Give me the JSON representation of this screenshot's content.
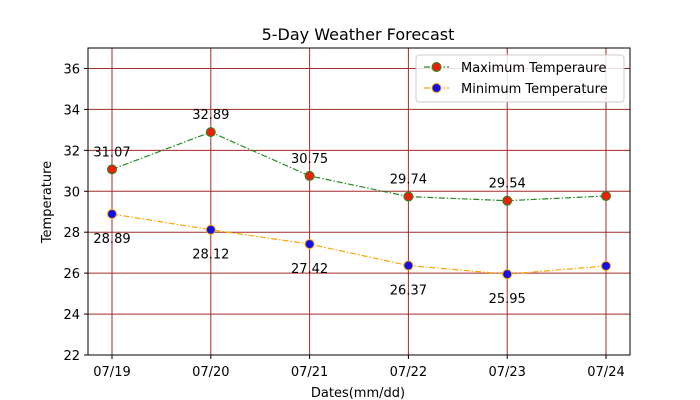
{
  "chart_data": {
    "type": "line",
    "title": "5-Day Weather Forecast",
    "xlabel": "Dates(mm/dd)",
    "ylabel": "Temperature",
    "categories": [
      "07/19",
      "07/20",
      "07/21",
      "07/22",
      "07/23",
      "07/24"
    ],
    "ylim": [
      22,
      37
    ],
    "yticks": [
      22,
      24,
      26,
      28,
      30,
      32,
      34,
      36
    ],
    "grid": true,
    "grid_color": "#a52a2a",
    "legend_position": "top-right",
    "series": [
      {
        "name": "Maximum Temperaure",
        "values": [
          31.07,
          32.89,
          30.75,
          29.74,
          29.54,
          29.77
        ],
        "labels": [
          "31.07",
          "32.89",
          "30.75",
          "29.74",
          "29.54",
          ""
        ],
        "label_position": "above",
        "line_color": "#228b22",
        "line_style": "dashdot",
        "marker_fill": "#e8200c",
        "marker_edge": "#228b22"
      },
      {
        "name": "Minimum Temperature",
        "values": [
          28.89,
          28.12,
          27.42,
          26.37,
          25.95,
          26.35
        ],
        "labels": [
          "28.89",
          "28.12",
          "27.42",
          "26.37",
          "25.95",
          ""
        ],
        "label_position": "below",
        "line_color": "#ffa500",
        "line_style": "dashdot",
        "marker_fill": "#1010e6",
        "marker_edge": "#ffa500"
      }
    ]
  }
}
